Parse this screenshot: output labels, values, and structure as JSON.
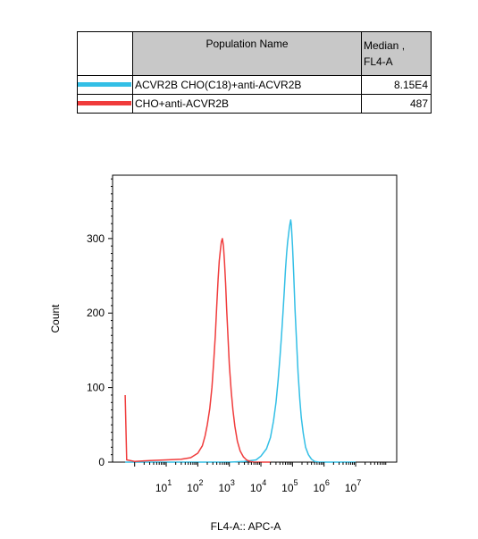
{
  "table": {
    "header_name": "Population Name",
    "header_median_line1": "Median ,",
    "header_median_line2": "FL4-A",
    "rows": [
      {
        "name": "ACVR2B CHO(C18)+anti-ACVR2B",
        "median": "8.15E4",
        "color": "#33bfe6"
      },
      {
        "name": "CHO+anti-ACVR2B",
        "median": "487",
        "color": "#f03c3c"
      }
    ]
  },
  "chart_data": {
    "type": "line",
    "title": "",
    "xlabel": "FL4-A:: APC-A",
    "ylabel": "Count",
    "x_scale": "log",
    "xlim": [
      0.2,
      200000000
    ],
    "ylim": [
      0,
      385
    ],
    "x_ticks": [
      10,
      100,
      1000,
      10000,
      100000,
      1000000,
      10000000
    ],
    "x_tick_labels": [
      {
        "base": "10",
        "exp": "1"
      },
      {
        "base": "10",
        "exp": "2"
      },
      {
        "base": "10",
        "exp": "3"
      },
      {
        "base": "10",
        "exp": "4"
      },
      {
        "base": "10",
        "exp": "5"
      },
      {
        "base": "10",
        "exp": "6"
      },
      {
        "base": "10",
        "exp": "7"
      }
    ],
    "y_ticks": [
      0,
      100,
      200,
      300
    ],
    "y_tick_labels": [
      "0",
      "100",
      "200",
      "300"
    ],
    "grid": false,
    "series": [
      {
        "name": "ACVR2B CHO(C18)+anti-ACVR2B",
        "color": "#33bfe6",
        "points": [
          [
            0.5,
            0
          ],
          [
            2,
            0
          ],
          [
            10,
            0
          ],
          [
            100,
            0
          ],
          [
            1000,
            0
          ],
          [
            3000,
            1
          ],
          [
            7000,
            3
          ],
          [
            10000,
            8
          ],
          [
            15000,
            18
          ],
          [
            20000,
            33
          ],
          [
            25000,
            55
          ],
          [
            30000,
            80
          ],
          [
            35000,
            110
          ],
          [
            40000,
            140
          ],
          [
            45000,
            170
          ],
          [
            50000,
            200
          ],
          [
            55000,
            230
          ],
          [
            60000,
            258
          ],
          [
            65000,
            280
          ],
          [
            70000,
            295
          ],
          [
            75000,
            305
          ],
          [
            80000,
            315
          ],
          [
            85000,
            322
          ],
          [
            88000,
            325
          ],
          [
            92000,
            318
          ],
          [
            100000,
            290
          ],
          [
            110000,
            250
          ],
          [
            120000,
            205
          ],
          [
            135000,
            160
          ],
          [
            150000,
            120
          ],
          [
            170000,
            85
          ],
          [
            190000,
            60
          ],
          [
            220000,
            38
          ],
          [
            260000,
            20
          ],
          [
            320000,
            10
          ],
          [
            400000,
            4
          ],
          [
            500000,
            1
          ],
          [
            700000,
            0
          ],
          [
            10000000,
            0
          ]
        ]
      },
      {
        "name": "CHO+anti-ACVR2B",
        "color": "#f03c3c",
        "points": [
          [
            0.5,
            90
          ],
          [
            0.56,
            3
          ],
          [
            1,
            1
          ],
          [
            3,
            2
          ],
          [
            10,
            3
          ],
          [
            30,
            4
          ],
          [
            60,
            6
          ],
          [
            100,
            12
          ],
          [
            140,
            22
          ],
          [
            170,
            35
          ],
          [
            200,
            50
          ],
          [
            240,
            72
          ],
          [
            280,
            100
          ],
          [
            320,
            135
          ],
          [
            360,
            170
          ],
          [
            400,
            210
          ],
          [
            440,
            245
          ],
          [
            480,
            270
          ],
          [
            520,
            285
          ],
          [
            560,
            296
          ],
          [
            600,
            300
          ],
          [
            650,
            290
          ],
          [
            700,
            270
          ],
          [
            760,
            240
          ],
          [
            820,
            205
          ],
          [
            900,
            170
          ],
          [
            1000,
            130
          ],
          [
            1150,
            95
          ],
          [
            1300,
            70
          ],
          [
            1500,
            48
          ],
          [
            1800,
            28
          ],
          [
            2200,
            15
          ],
          [
            2800,
            7
          ],
          [
            3500,
            3
          ],
          [
            4500,
            1
          ],
          [
            6000,
            0
          ],
          [
            20000,
            0
          ]
        ]
      }
    ]
  }
}
